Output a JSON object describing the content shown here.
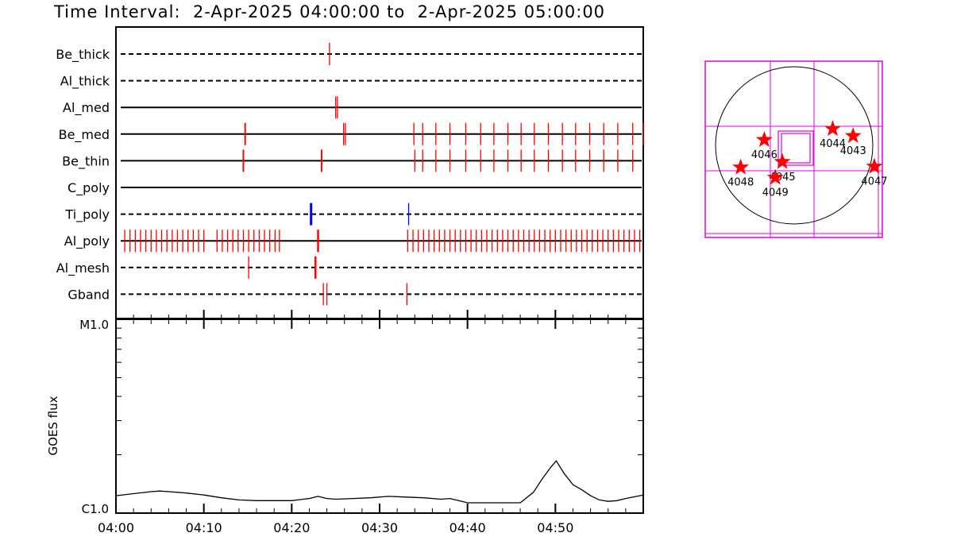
{
  "title": {
    "prefix": "Time Interval:",
    "start": "2-Apr-2025 04:00:00",
    "sep": "to",
    "end": "2-Apr-2025 05:00:00"
  },
  "colors": {
    "frame": "#000000",
    "event_red": "#ff0000",
    "event_blue": "#0000ff",
    "map": "#e000e0",
    "star": "#ff0000"
  },
  "chart_data": [
    {
      "type": "scatter",
      "kind": "observation-timeline",
      "x_unit": "minutes after 04:00",
      "xlim": [
        0,
        60
      ],
      "rows": [
        {
          "label": "Be_thick",
          "line": "dashed",
          "events": [
            {
              "t": 24.3,
              "color": "red"
            }
          ]
        },
        {
          "label": "Al_thick",
          "line": "dashed",
          "events": []
        },
        {
          "label": "Al_med",
          "line": "solid",
          "events": [
            {
              "t": 25.0,
              "color": "red"
            },
            {
              "t": 25.2,
              "color": "red"
            }
          ]
        },
        {
          "label": "Be_med",
          "line": "solid",
          "events": [
            {
              "t": 14.7,
              "color": "red",
              "w": 2
            },
            {
              "t": 25.9,
              "color": "red"
            },
            {
              "t": 26.1,
              "color": "red"
            },
            {
              "t": 33.9,
              "color": "red"
            },
            {
              "t": 34.9,
              "color": "red"
            },
            {
              "t": 36.4,
              "color": "red"
            },
            {
              "t": 38.0,
              "color": "red"
            },
            {
              "t": 39.8,
              "color": "red"
            },
            {
              "t": 41.5,
              "color": "red"
            },
            {
              "t": 43.0,
              "color": "red"
            },
            {
              "t": 44.6,
              "color": "red"
            },
            {
              "t": 46.1,
              "color": "red"
            },
            {
              "t": 47.6,
              "color": "red"
            },
            {
              "t": 49.2,
              "color": "red"
            },
            {
              "t": 50.8,
              "color": "red"
            },
            {
              "t": 52.3,
              "color": "red"
            },
            {
              "t": 53.9,
              "color": "red"
            },
            {
              "t": 55.5,
              "color": "red"
            },
            {
              "t": 57.1,
              "color": "red"
            },
            {
              "t": 58.8,
              "color": "red"
            },
            {
              "t": 60.0,
              "color": "red"
            }
          ]
        },
        {
          "label": "Be_thin",
          "line": "solid",
          "events": [
            {
              "t": 14.5,
              "color": "red",
              "w": 2
            },
            {
              "t": 23.4,
              "color": "red",
              "w": 2
            },
            {
              "t": 34.0,
              "color": "red"
            },
            {
              "t": 34.9,
              "color": "red"
            },
            {
              "t": 36.4,
              "color": "red"
            },
            {
              "t": 38.0,
              "color": "red"
            },
            {
              "t": 39.8,
              "color": "red"
            },
            {
              "t": 41.5,
              "color": "red"
            },
            {
              "t": 43.0,
              "color": "red"
            },
            {
              "t": 44.6,
              "color": "red"
            },
            {
              "t": 46.1,
              "color": "red"
            },
            {
              "t": 47.6,
              "color": "red"
            },
            {
              "t": 49.2,
              "color": "red"
            },
            {
              "t": 50.8,
              "color": "red"
            },
            {
              "t": 52.3,
              "color": "red"
            },
            {
              "t": 53.9,
              "color": "red"
            },
            {
              "t": 55.5,
              "color": "red"
            },
            {
              "t": 57.1,
              "color": "red"
            },
            {
              "t": 58.8,
              "color": "red"
            }
          ]
        },
        {
          "label": "C_poly",
          "line": "solid",
          "events": []
        },
        {
          "label": "Ti_poly",
          "line": "dashed",
          "events": [
            {
              "t": 22.2,
              "color": "blue",
              "w": 3
            },
            {
              "t": 33.3,
              "color": "blue"
            }
          ]
        },
        {
          "label": "Al_poly",
          "line": "solid",
          "events": [
            {
              "t": 1.0,
              "color": "red"
            },
            {
              "t": 1.6,
              "color": "red"
            },
            {
              "t": 2.2,
              "color": "red"
            },
            {
              "t": 2.8,
              "color": "red"
            },
            {
              "t": 3.4,
              "color": "red"
            },
            {
              "t": 4.0,
              "color": "red"
            },
            {
              "t": 4.6,
              "color": "red"
            },
            {
              "t": 5.2,
              "color": "red"
            },
            {
              "t": 5.8,
              "color": "red"
            },
            {
              "t": 6.4,
              "color": "red"
            },
            {
              "t": 7.0,
              "color": "red"
            },
            {
              "t": 7.6,
              "color": "red"
            },
            {
              "t": 8.2,
              "color": "red"
            },
            {
              "t": 8.8,
              "color": "red"
            },
            {
              "t": 9.4,
              "color": "red"
            },
            {
              "t": 10.0,
              "color": "red"
            },
            {
              "t": 11.5,
              "color": "red"
            },
            {
              "t": 12.1,
              "color": "red"
            },
            {
              "t": 12.7,
              "color": "red"
            },
            {
              "t": 13.3,
              "color": "red"
            },
            {
              "t": 13.9,
              "color": "red"
            },
            {
              "t": 14.5,
              "color": "red"
            },
            {
              "t": 15.1,
              "color": "red"
            },
            {
              "t": 15.7,
              "color": "red"
            },
            {
              "t": 16.3,
              "color": "red"
            },
            {
              "t": 16.9,
              "color": "red"
            },
            {
              "t": 17.5,
              "color": "red"
            },
            {
              "t": 18.1,
              "color": "red"
            },
            {
              "t": 18.6,
              "color": "red"
            },
            {
              "t": 23.0,
              "color": "red",
              "w": 2.5
            },
            {
              "t": 33.2,
              "color": "red"
            },
            {
              "t": 33.8,
              "color": "red"
            },
            {
              "t": 34.4,
              "color": "red"
            },
            {
              "t": 35.0,
              "color": "red"
            },
            {
              "t": 35.6,
              "color": "red"
            },
            {
              "t": 36.2,
              "color": "red"
            },
            {
              "t": 36.8,
              "color": "red"
            },
            {
              "t": 37.4,
              "color": "red"
            },
            {
              "t": 38.0,
              "color": "red"
            },
            {
              "t": 38.6,
              "color": "red"
            },
            {
              "t": 39.2,
              "color": "red"
            },
            {
              "t": 39.8,
              "color": "red"
            },
            {
              "t": 40.4,
              "color": "red"
            },
            {
              "t": 41.0,
              "color": "red"
            },
            {
              "t": 41.6,
              "color": "red"
            },
            {
              "t": 42.2,
              "color": "red"
            },
            {
              "t": 42.8,
              "color": "red"
            },
            {
              "t": 43.4,
              "color": "red"
            },
            {
              "t": 44.0,
              "color": "red"
            },
            {
              "t": 44.6,
              "color": "red"
            },
            {
              "t": 45.2,
              "color": "red"
            },
            {
              "t": 45.8,
              "color": "red"
            },
            {
              "t": 46.4,
              "color": "red"
            },
            {
              "t": 47.0,
              "color": "red"
            },
            {
              "t": 47.6,
              "color": "red"
            },
            {
              "t": 48.2,
              "color": "red"
            },
            {
              "t": 48.8,
              "color": "red"
            },
            {
              "t": 49.4,
              "color": "red"
            },
            {
              "t": 50.0,
              "color": "red"
            },
            {
              "t": 50.6,
              "color": "red"
            },
            {
              "t": 51.2,
              "color": "red"
            },
            {
              "t": 51.8,
              "color": "red"
            },
            {
              "t": 52.4,
              "color": "red"
            },
            {
              "t": 53.0,
              "color": "red"
            },
            {
              "t": 53.6,
              "color": "red"
            },
            {
              "t": 54.2,
              "color": "red"
            },
            {
              "t": 54.8,
              "color": "red"
            },
            {
              "t": 55.4,
              "color": "red"
            },
            {
              "t": 56.0,
              "color": "red"
            },
            {
              "t": 56.6,
              "color": "red"
            },
            {
              "t": 57.2,
              "color": "red"
            },
            {
              "t": 57.8,
              "color": "red"
            },
            {
              "t": 58.4,
              "color": "red"
            },
            {
              "t": 59.0,
              "color": "red"
            },
            {
              "t": 59.6,
              "color": "red"
            }
          ]
        },
        {
          "label": "Al_mesh",
          "line": "dashed",
          "events": [
            {
              "t": 15.1,
              "color": "red"
            },
            {
              "t": 22.7,
              "color": "red",
              "w": 2.5
            }
          ]
        },
        {
          "label": "Gband",
          "line": "dashed",
          "events": [
            {
              "t": 23.6,
              "color": "red"
            },
            {
              "t": 24.0,
              "color": "red"
            },
            {
              "t": 33.1,
              "color": "red"
            }
          ]
        }
      ]
    },
    {
      "type": "line",
      "ylabel": "GOES flux",
      "y_scale": "log",
      "ylim_labels": [
        "C1.0",
        "M1.0"
      ],
      "ylim_w_m2": [
        1e-06,
        1e-05
      ],
      "x_unit": "minutes after 04:00",
      "xlim": [
        0,
        60
      ],
      "x_ticks": [
        0,
        10,
        20,
        30,
        40,
        50
      ],
      "x_tick_labels": [
        "04:00",
        "04:10",
        "04:20",
        "04:30",
        "04:40",
        "04:50"
      ],
      "x": [
        0,
        2,
        4,
        5,
        6,
        8,
        10,
        12,
        14,
        16,
        18,
        20,
        22,
        23,
        24,
        25,
        27,
        29,
        31,
        33,
        35,
        37,
        38,
        39,
        40,
        42,
        44,
        46,
        47.5,
        48.5,
        49.5,
        50.1,
        51,
        52,
        53,
        54,
        55,
        56,
        57,
        58,
        60
      ],
      "y": [
        1.23e-06,
        1.26e-06,
        1.29e-06,
        1.3e-06,
        1.29e-06,
        1.27e-06,
        1.24e-06,
        1.2e-06,
        1.17e-06,
        1.16e-06,
        1.16e-06,
        1.16e-06,
        1.19e-06,
        1.22e-06,
        1.19e-06,
        1.18e-06,
        1.19e-06,
        1.2e-06,
        1.22e-06,
        1.21e-06,
        1.2e-06,
        1.18e-06,
        1.19e-06,
        1.16e-06,
        1.13e-06,
        1.13e-06,
        1.13e-06,
        1.13e-06,
        1.28e-06,
        1.5e-06,
        1.73e-06,
        1.86e-06,
        1.6e-06,
        1.4e-06,
        1.32e-06,
        1.23e-06,
        1.17e-06,
        1.15e-06,
        1.16e-06,
        1.19e-06,
        1.24e-06
      ]
    },
    {
      "type": "scatter",
      "kind": "solar-disk-map",
      "regions": [
        {
          "label": "4044",
          "x": 0.49,
          "y": -0.21
        },
        {
          "label": "4043",
          "x": 0.75,
          "y": -0.12
        },
        {
          "label": "4046",
          "x": -0.38,
          "y": -0.07
        },
        {
          "label": "4045",
          "x": -0.15,
          "y": 0.21
        },
        {
          "label": "4047",
          "x": 1.02,
          "y": 0.27
        },
        {
          "label": "4048",
          "x": -0.68,
          "y": 0.28
        },
        {
          "label": "4049",
          "x": -0.24,
          "y": 0.41
        }
      ]
    }
  ]
}
